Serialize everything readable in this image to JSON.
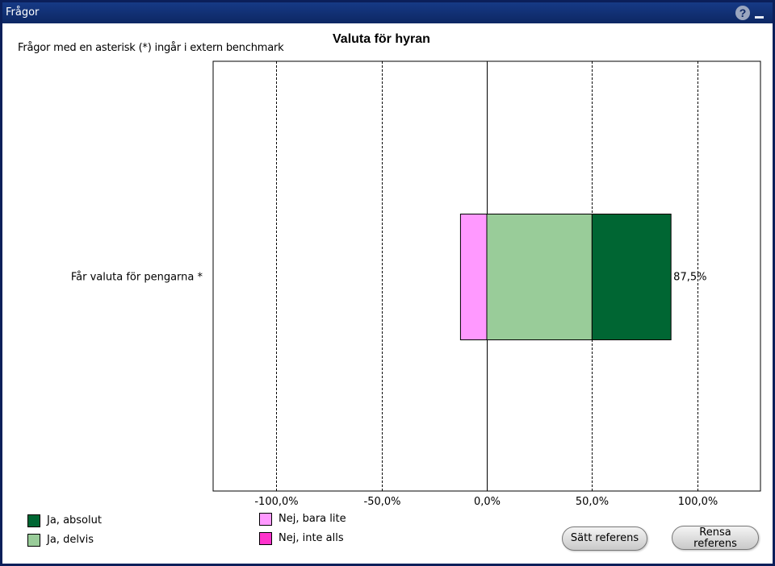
{
  "window": {
    "title": "Frågor",
    "help_icon": "question-circle-icon",
    "minimize_icon": "minimize-icon"
  },
  "note": "Frågor med en asterisk (*) ingår i extern benchmark",
  "legend": [
    {
      "label": "Ja, absolut",
      "color": "#006633"
    },
    {
      "label": "Ja, delvis",
      "color": "#99cc99"
    },
    {
      "label": "Nej, bara lite",
      "color": "#ff99ff"
    },
    {
      "label": "Nej, inte alls",
      "color": "#ff33cc"
    }
  ],
  "buttons": {
    "set_reference": "Sätt referens",
    "clear_reference": "Rensa referens"
  },
  "chart_data": {
    "type": "bar",
    "orientation": "horizontal",
    "stacked": "diverging",
    "title": "Valuta för hyran",
    "categories": [
      "Får valuta för pengarna *"
    ],
    "xlim": [
      -130,
      130
    ],
    "xticks": [
      -100,
      -50,
      0,
      50,
      100
    ],
    "xtick_labels": [
      "-100,0%",
      "-50,0%",
      "0,0%",
      "50,0%",
      "100,0%"
    ],
    "series": [
      {
        "name": "Nej, bara lite",
        "color": "#ff99ff",
        "values": [
          -12.5
        ]
      },
      {
        "name": "Ja, delvis",
        "color": "#99cc99",
        "values": [
          50
        ]
      },
      {
        "name": "Ja, absolut",
        "color": "#006633",
        "values": [
          37.5
        ]
      }
    ],
    "value_labels": [
      "87,5%"
    ],
    "grid": "dashed vertical at ±50, ±100; solid at 0"
  }
}
